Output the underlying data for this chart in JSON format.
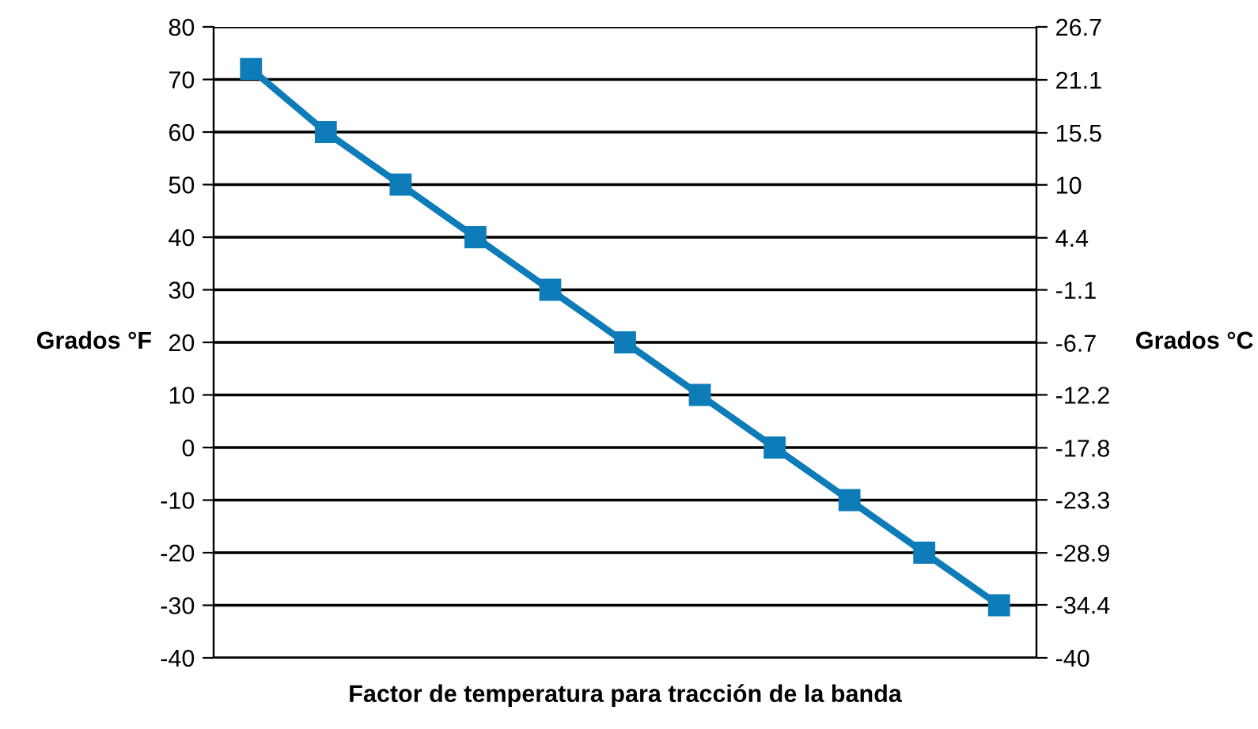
{
  "chart_data": {
    "type": "line",
    "xlabel": "Factor de temperatura para tracción de la banda",
    "ylabel": "Grados °F",
    "y2label": "Grados °C",
    "categories": [
      null,
      null,
      null,
      null,
      null,
      null,
      null,
      null,
      null,
      null,
      null
    ],
    "series": [
      {
        "color": "#0e7cb8",
        "values": [
          72,
          60,
          50,
          40,
          30,
          20,
          10,
          0,
          -10,
          -20,
          -30
        ]
      }
    ],
    "tick_labels": "y",
    "ylim": [
      -40,
      80
    ],
    "yticks": [
      -40,
      -30,
      -20,
      -10,
      0,
      10,
      20,
      30,
      40,
      50,
      60,
      70,
      80
    ],
    "y2lim": [
      -40,
      26.7
    ],
    "y2ticks": [
      -40,
      -34.4,
      -28.9,
      -23.3,
      -17.8,
      -12.2,
      -6.7,
      -1.1,
      4.4,
      10,
      15.5,
      21.1,
      26.7
    ],
    "grid": "y",
    "marker": "square",
    "line_style": "solid",
    "legend": false
  }
}
